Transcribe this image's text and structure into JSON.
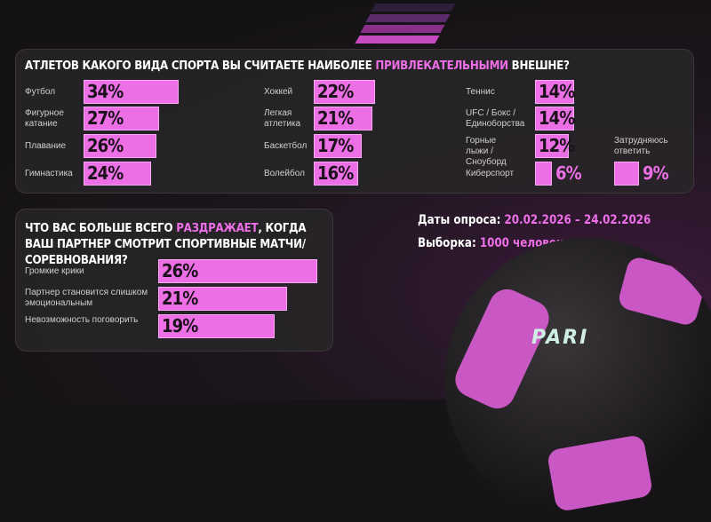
{
  "colors": {
    "accent": "#ec6fe6",
    "background": "#161416",
    "panel": "#282628"
  },
  "chart_data": [
    {
      "type": "bar",
      "orientation": "horizontal",
      "title_parts": [
        "Атлетов какого вида спорта вы считаете наиболее ",
        "привлекательными",
        " внешне?"
      ],
      "categories": [
        "Футбол",
        "Фигурное катание",
        "Плавание",
        "Гимнастика",
        "Хоккей",
        "Легкая атлетика",
        "Баскетбол",
        "Волейбол",
        "Теннис",
        "UFC / Бокс / Единоборства",
        "Горные лыжи / Сноуборд",
        "Киберспорт",
        "Затрудняюсь ответить"
      ],
      "values": [
        34,
        27,
        26,
        24,
        22,
        21,
        17,
        16,
        14,
        14,
        12,
        6,
        9
      ],
      "labels": [
        "34%",
        "27%",
        "26%",
        "24%",
        "22%",
        "21%",
        "17%",
        "16%",
        "14%",
        "14%",
        "12%",
        "6%",
        "9%"
      ],
      "unit": "%"
    },
    {
      "type": "bar",
      "orientation": "horizontal",
      "title_parts": [
        "Что вас больше всего ",
        "раздражает",
        ", когда ваш партнер смотрит спортивные матчи/соревнования?"
      ],
      "categories": [
        "Громкие крики",
        "Партнер становится слишком эмоциональным",
        "Невозможность поговорить"
      ],
      "values": [
        26,
        21,
        19
      ],
      "labels": [
        "26%",
        "21%",
        "19%"
      ],
      "unit": "%"
    }
  ],
  "info": {
    "dates_label": "Даты опроса:",
    "dates_value": "20.02.2026 – 24.02.2026",
    "sample_label": "Выборка:",
    "sample_value": "1000 человек"
  },
  "brand": {
    "logo": "PARI"
  }
}
